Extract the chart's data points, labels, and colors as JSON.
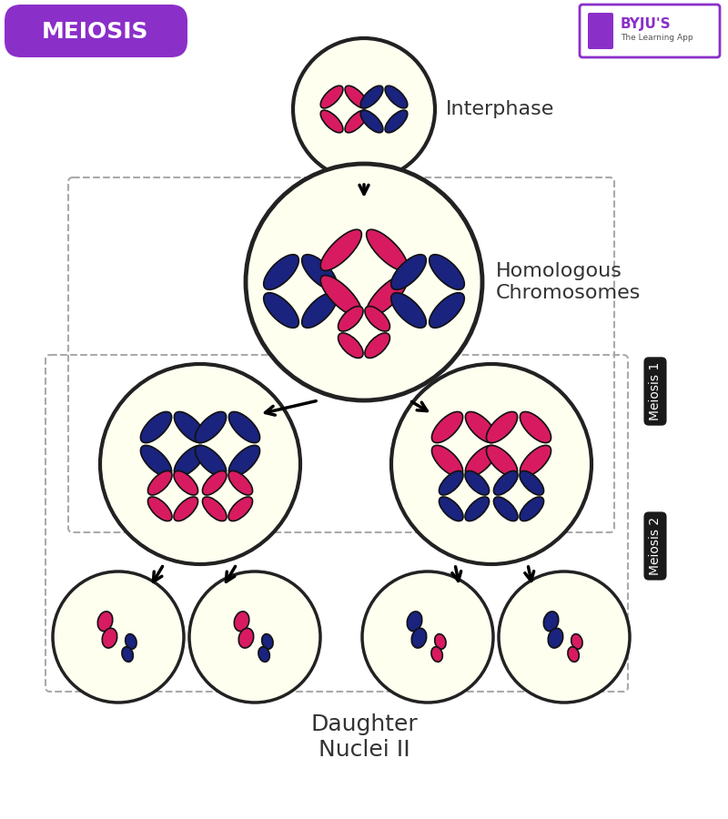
{
  "bg_color": "#ffffff",
  "title": "MEIOSIS",
  "title_bg": "#8B2FC9",
  "title_color": "#ffffff",
  "cell_fill": "#FFFFF0",
  "cell_edge": "#222222",
  "pink": "#D81B60",
  "blue": "#1a237e",
  "dark_outline": "#111111",
  "label_interphase": "Interphase",
  "label_homologous": "Homologous\nChromosomes",
  "label_daughter": "Daughter\nNuclei II",
  "label_meiosis1": "Meiosis 1",
  "label_meiosis2": "Meiosis 2",
  "label_color": "#333333"
}
